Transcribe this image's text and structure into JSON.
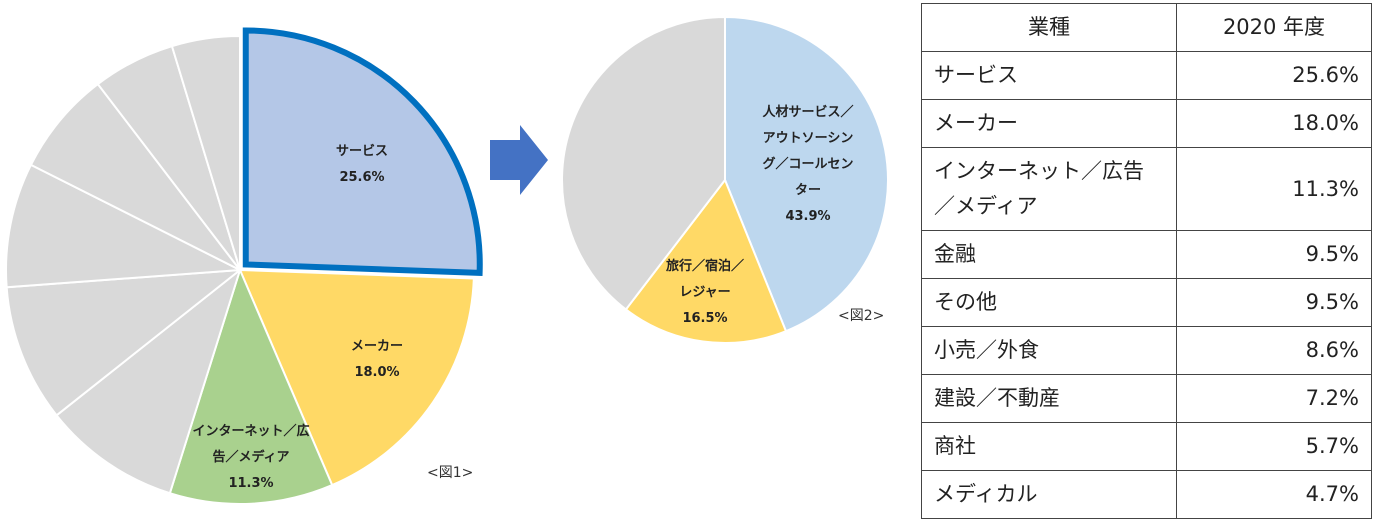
{
  "chart_data": [
    {
      "type": "pie",
      "categories": [
        "サービス",
        "メーカー",
        "インターネット／広告／メディア",
        null,
        null,
        null,
        null,
        null,
        null
      ],
      "values": [
        25.6,
        18.0,
        11.3,
        9.5,
        9.5,
        8.6,
        7.2,
        5.7,
        4.7
      ],
      "value_labels": [
        "25.6%",
        "18.0%",
        "11.3%",
        null,
        null,
        null,
        null,
        null,
        null
      ],
      "colors": [
        "#b4c7e7",
        "#ffd966",
        "#a9d18e",
        "#d9d9d9",
        "#d9d9d9",
        "#d9d9d9",
        "#d9d9d9",
        "#d9d9d9",
        "#d9d9d9"
      ],
      "highlight_color": "#0070c0",
      "annotation": "<図1>"
    },
    {
      "type": "pie",
      "categories": [
        "人材サービス／アウトソーシング／コールセンター",
        "旅行／宿泊／レジャー",
        null
      ],
      "values": [
        43.9,
        16.5,
        39.6
      ],
      "value_labels": [
        "43.9%",
        "16.5%",
        null
      ],
      "colors": [
        "#bdd7ee",
        "#ffd966",
        "#d9d9d9"
      ],
      "annotation": "<図2>"
    }
  ],
  "table": {
    "header": [
      "業種",
      "2020 年度"
    ],
    "rows": [
      [
        "サービス",
        "25.6%"
      ],
      [
        "メーカー",
        "18.0%"
      ],
      [
        "インターネット／広告／メディア",
        "11.3%"
      ],
      [
        "金融",
        "9.5%"
      ],
      [
        "その他",
        "9.5%"
      ],
      [
        "小売／外食",
        "8.6%"
      ],
      [
        "建設／不動産",
        "7.2%"
      ],
      [
        "商社",
        "5.7%"
      ],
      [
        "メディカル",
        "4.7%"
      ]
    ]
  }
}
